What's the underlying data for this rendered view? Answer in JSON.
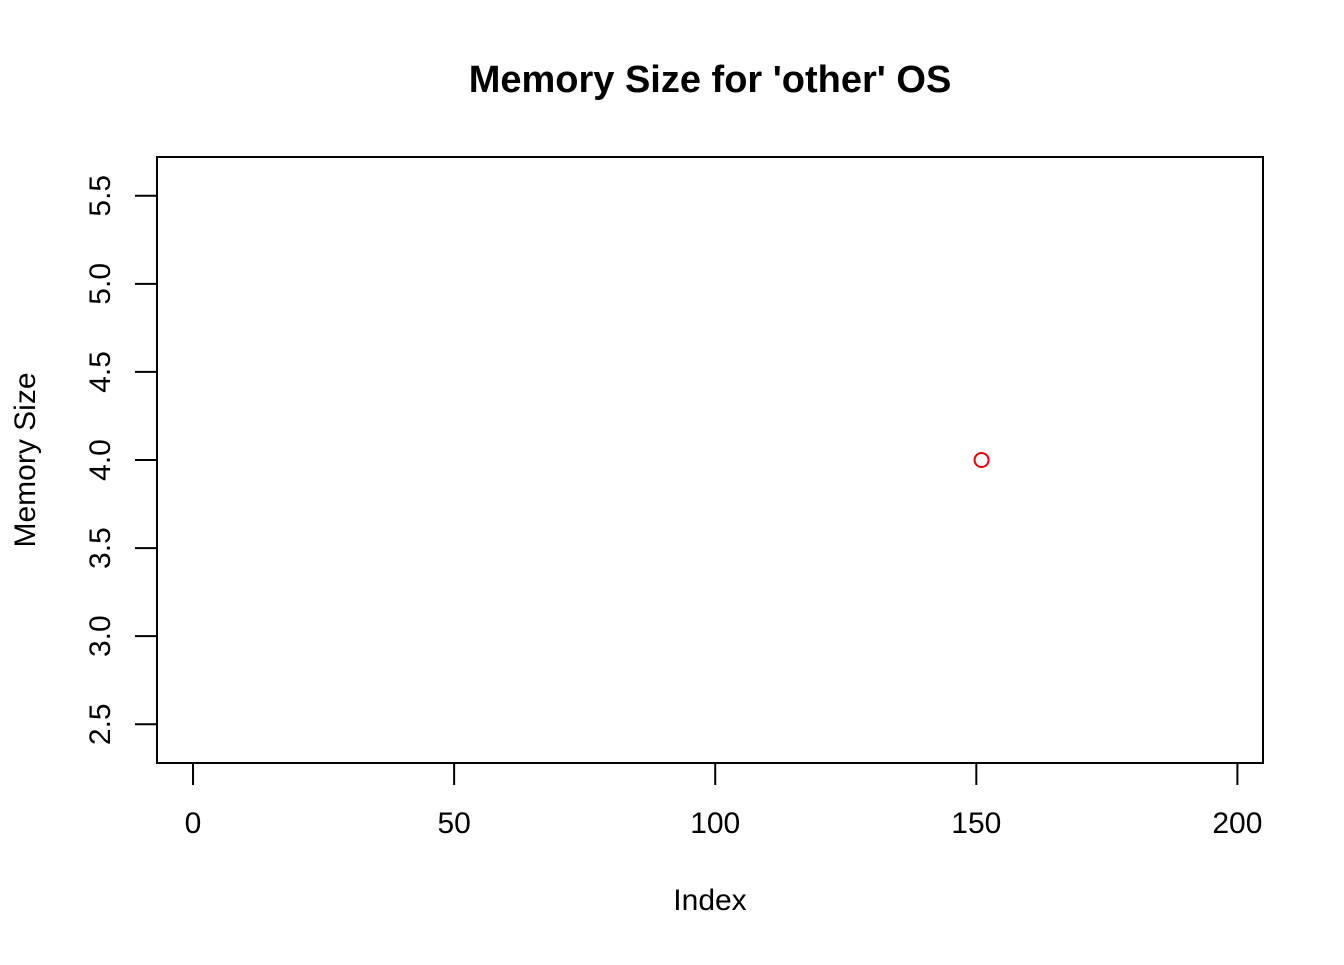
{
  "chart_data": {
    "type": "scatter",
    "title": "Memory Size for 'other' OS",
    "xlabel": "Index",
    "ylabel": "Memory Size",
    "xlim": [
      -6.9,
      204.9
    ],
    "ylim": [
      2.28,
      5.72
    ],
    "x_ticks": [
      0,
      50,
      100,
      150,
      200
    ],
    "x_tick_labels": [
      "0",
      "50",
      "100",
      "150",
      "200"
    ],
    "y_ticks": [
      2.5,
      3.0,
      3.5,
      4.0,
      4.5,
      5.0,
      5.5
    ],
    "y_tick_labels": [
      "2.5",
      "3.0",
      "3.5",
      "4.0",
      "4.5",
      "5.0",
      "5.5"
    ],
    "grid": false,
    "legend": null,
    "series": [
      {
        "color": "#e8000b",
        "marker": "open-circle",
        "points": [
          {
            "x": 151,
            "y": 4.0
          }
        ]
      }
    ]
  }
}
